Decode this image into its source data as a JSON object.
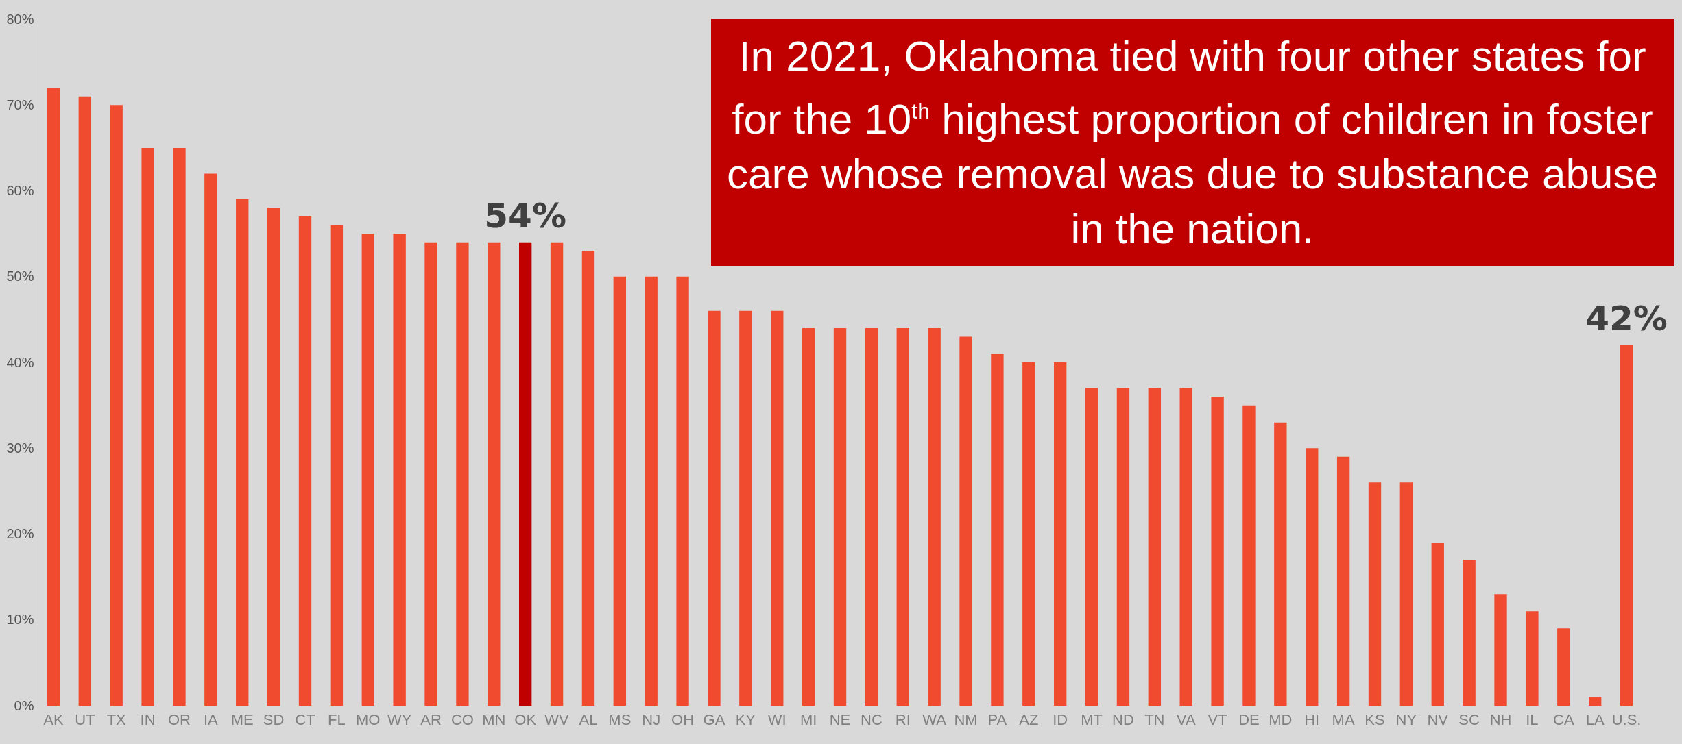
{
  "chart_data": {
    "type": "bar",
    "categories": [
      "AK",
      "UT",
      "TX",
      "IN",
      "OR",
      "IA",
      "ME",
      "SD",
      "CT",
      "FL",
      "MO",
      "WY",
      "AR",
      "CO",
      "MN",
      "OK",
      "WV",
      "AL",
      "MS",
      "NJ",
      "OH",
      "GA",
      "KY",
      "WI",
      "MI",
      "NE",
      "NC",
      "RI",
      "WA",
      "NM",
      "PA",
      "AZ",
      "ID",
      "MT",
      "ND",
      "TN",
      "VA",
      "VT",
      "DE",
      "MD",
      "HI",
      "MA",
      "KS",
      "NY",
      "NV",
      "SC",
      "NH",
      "IL",
      "CA",
      "LA",
      "U.S."
    ],
    "values": [
      72,
      71,
      70,
      65,
      65,
      62,
      59,
      58,
      57,
      56,
      55,
      55,
      54,
      54,
      54,
      54,
      54,
      53,
      50,
      50,
      50,
      46,
      46,
      46,
      44,
      44,
      44,
      44,
      44,
      43,
      41,
      40,
      40,
      37,
      37,
      37,
      37,
      36,
      35,
      33,
      30,
      29,
      26,
      26,
      19,
      17,
      13,
      11,
      9,
      1,
      42
    ],
    "colors": [
      "#f04a2f",
      "#f04a2f",
      "#f04a2f",
      "#f04a2f",
      "#f04a2f",
      "#f04a2f",
      "#f04a2f",
      "#f04a2f",
      "#f04a2f",
      "#f04a2f",
      "#f04a2f",
      "#f04a2f",
      "#f04a2f",
      "#f04a2f",
      "#f04a2f",
      "#c00000",
      "#f04a2f",
      "#f04a2f",
      "#f04a2f",
      "#f04a2f",
      "#f04a2f",
      "#f04a2f",
      "#f04a2f",
      "#f04a2f",
      "#f04a2f",
      "#f04a2f",
      "#f04a2f",
      "#f04a2f",
      "#f04a2f",
      "#f04a2f",
      "#f04a2f",
      "#f04a2f",
      "#f04a2f",
      "#f04a2f",
      "#f04a2f",
      "#f04a2f",
      "#f04a2f",
      "#f04a2f",
      "#f04a2f",
      "#f04a2f",
      "#f04a2f",
      "#f04a2f",
      "#f04a2f",
      "#f04a2f",
      "#f04a2f",
      "#f04a2f",
      "#f04a2f",
      "#f04a2f",
      "#f04a2f",
      "#f04a2f",
      "#f04a2f"
    ],
    "value_labels": [
      null,
      null,
      null,
      null,
      null,
      null,
      null,
      null,
      null,
      null,
      null,
      null,
      null,
      null,
      null,
      "54%",
      null,
      null,
      null,
      null,
      null,
      null,
      null,
      null,
      null,
      null,
      null,
      null,
      null,
      null,
      null,
      null,
      null,
      null,
      null,
      null,
      null,
      null,
      null,
      null,
      null,
      null,
      null,
      null,
      null,
      null,
      null,
      null,
      null,
      null,
      "42%"
    ],
    "ylim": [
      0,
      80
    ],
    "yticks": [
      {
        "value": 0,
        "label": "0%"
      },
      {
        "value": 10,
        "label": "10%"
      },
      {
        "value": 20,
        "label": "20%"
      },
      {
        "value": 30,
        "label": "30%"
      },
      {
        "value": 40,
        "label": "40%"
      },
      {
        "value": 50,
        "label": "50%"
      },
      {
        "value": 60,
        "label": "60%"
      },
      {
        "value": 70,
        "label": "70%"
      },
      {
        "value": 80,
        "label": "80%"
      }
    ],
    "annotations": [
      "In 2021, Oklahoma tied with four other states for for the 10$^{th}$ highest proportion of children in foster care whose removal was due to substance abuse in the nation."
    ]
  }
}
